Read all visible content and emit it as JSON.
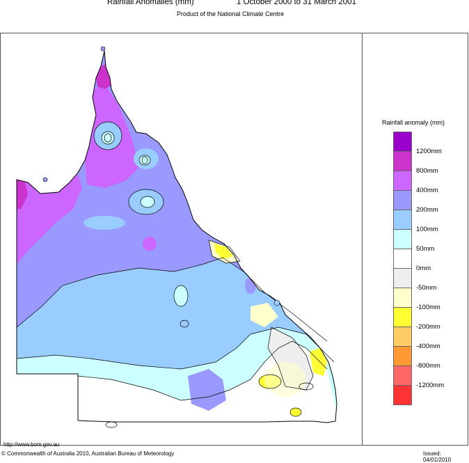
{
  "header": {
    "title": "Rainfall Anomalies (mm)",
    "period": "1 October 2000 to 31 March 2001",
    "subtitle": "Product of the National Climate Centre"
  },
  "legend": {
    "title": "Rainfall anomaly (mm)",
    "items": [
      {
        "label": "1200mm",
        "color": "#9900cc"
      },
      {
        "label": "800mm",
        "color": "#cc33cc"
      },
      {
        "label": "400mm",
        "color": "#cc66ff"
      },
      {
        "label": "200mm",
        "color": "#9999ff"
      },
      {
        "label": "100mm",
        "color": "#99ccff"
      },
      {
        "label": "50mm",
        "color": "#ccffff"
      },
      {
        "label": "0mm",
        "color": "#ffffff"
      },
      {
        "label": "-50mm",
        "color": "#eeeeee"
      },
      {
        "label": "-100mm",
        "color": "#ffffcc"
      },
      {
        "label": "-200mm",
        "color": "#ffff33"
      },
      {
        "label": "-400mm",
        "color": "#ffcc66"
      },
      {
        "label": "-800mm",
        "color": "#ff9933"
      },
      {
        "label": "-1200mm",
        "color": "#ff6666"
      }
    ],
    "bottom_color": "#ff3333"
  },
  "footer": {
    "url": "http://www.bom.gov.au",
    "copyright": "© Commonwealth of Australia 2010, Australian Bureau of Meteorology",
    "issued": "Issued: 04/01/2010"
  }
}
